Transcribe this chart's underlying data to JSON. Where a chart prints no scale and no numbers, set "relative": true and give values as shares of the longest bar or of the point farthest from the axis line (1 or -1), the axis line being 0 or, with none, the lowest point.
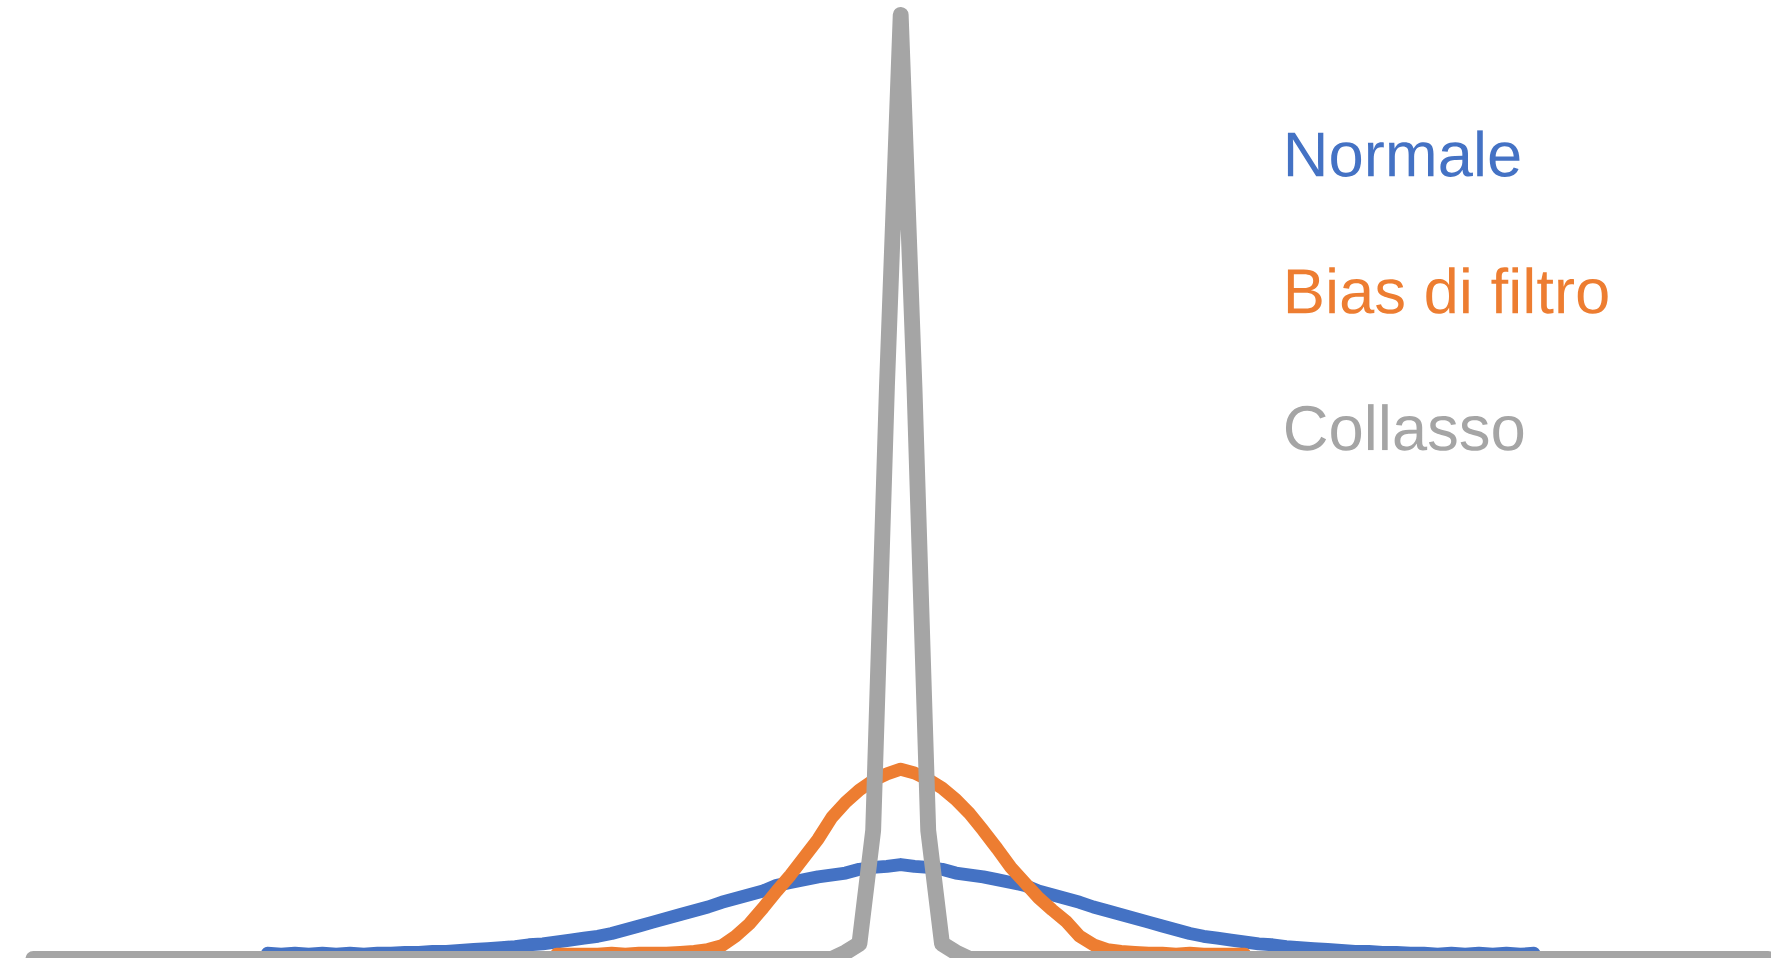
{
  "chart_data": {
    "type": "line",
    "relative": true,
    "categories": [
      null,
      null,
      null,
      null,
      null,
      null,
      null,
      null,
      null,
      null,
      null,
      null,
      null,
      null,
      null,
      null,
      null,
      null,
      null,
      null,
      null,
      null,
      null,
      null,
      null,
      null,
      null,
      null,
      null,
      null,
      null,
      null,
      null,
      null,
      null,
      null,
      null,
      null,
      null,
      null,
      null,
      null,
      null,
      null,
      null,
      null,
      null,
      null,
      null,
      null,
      null,
      null,
      null,
      null,
      null,
      null,
      null,
      null,
      null,
      null,
      null,
      null,
      null,
      null,
      null,
      null,
      null,
      null,
      null,
      null,
      null,
      null,
      null,
      null,
      null,
      null,
      null,
      null,
      null,
      null,
      null,
      null,
      null,
      null,
      null,
      null,
      null,
      null,
      null,
      null,
      null,
      null,
      null,
      null,
      null,
      null,
      null,
      null,
      null,
      null,
      null,
      null,
      null,
      null,
      null,
      null,
      null,
      null,
      null,
      null,
      null,
      null,
      null,
      null,
      null,
      null,
      null,
      null,
      null,
      null,
      null,
      null,
      null,
      null,
      null,
      null,
      null
    ],
    "series": [
      {
        "name": "Normale",
        "color": "#4472c4",
        "values": [
          null,
          null,
          null,
          null,
          null,
          null,
          null,
          null,
          null,
          null,
          null,
          null,
          null,
          null,
          null,
          null,
          null,
          0.006,
          0.005,
          0.006,
          0.005,
          0.006,
          0.005,
          0.006,
          0.005,
          0.006,
          0.006,
          0.007,
          0.007,
          0.008,
          0.008,
          0.009,
          0.01,
          0.011,
          0.012,
          0.013,
          0.015,
          0.016,
          0.018,
          0.02,
          0.022,
          0.024,
          0.027,
          0.031,
          0.035,
          0.039,
          0.043,
          0.047,
          0.051,
          0.055,
          0.06,
          0.064,
          0.068,
          0.072,
          0.078,
          0.081,
          0.084,
          0.087,
          0.089,
          0.091,
          0.095,
          0.097,
          0.098,
          0.1,
          0.098,
          0.097,
          0.095,
          0.091,
          0.089,
          0.087,
          0.084,
          0.081,
          0.078,
          0.072,
          0.068,
          0.064,
          0.06,
          0.055,
          0.051,
          0.047,
          0.043,
          0.039,
          0.035,
          0.031,
          0.027,
          0.024,
          0.022,
          0.02,
          0.018,
          0.016,
          0.015,
          0.013,
          0.012,
          0.011,
          0.01,
          0.009,
          0.008,
          0.008,
          0.007,
          0.007,
          0.006,
          0.006,
          0.005,
          0.006,
          0.005,
          0.006,
          0.005,
          0.006,
          0.005,
          0.006,
          null,
          null,
          null,
          null,
          null,
          null,
          null,
          null,
          null,
          null,
          null,
          null,
          null,
          null,
          null,
          null,
          null
        ]
      },
      {
        "name": "Bias di filtro",
        "color": "#ed7d31",
        "values": [
          null,
          null,
          null,
          null,
          null,
          null,
          null,
          null,
          null,
          null,
          null,
          null,
          null,
          null,
          null,
          null,
          null,
          null,
          null,
          null,
          null,
          null,
          null,
          null,
          null,
          null,
          null,
          null,
          null,
          null,
          null,
          null,
          null,
          null,
          null,
          null,
          null,
          null,
          0.005,
          0.005,
          0.005,
          0.005,
          0.006,
          0.005,
          0.006,
          0.006,
          0.006,
          0.007,
          0.008,
          0.01,
          0.014,
          0.024,
          0.037,
          0.054,
          0.072,
          0.089,
          0.108,
          0.127,
          0.15,
          0.166,
          0.179,
          0.189,
          0.196,
          0.201,
          0.197,
          0.19,
          0.181,
          0.169,
          0.154,
          0.136,
          0.117,
          0.097,
          0.081,
          0.065,
          0.052,
          0.04,
          0.024,
          0.015,
          0.01,
          0.008,
          0.007,
          0.006,
          0.006,
          0.005,
          0.006,
          0.005,
          0.005,
          0.005,
          0.005,
          null,
          null,
          null,
          null,
          null,
          null,
          null,
          null,
          null,
          null,
          null,
          null,
          null,
          null,
          null,
          null,
          null,
          null,
          null,
          null,
          null,
          null,
          null,
          null,
          null,
          null,
          null,
          null,
          null,
          null,
          null,
          null,
          null,
          null,
          null,
          null,
          null,
          null
        ]
      },
      {
        "name": "Collasso",
        "color": "#a5a5a5",
        "values": [
          0,
          0,
          0,
          0,
          0,
          0,
          0,
          0,
          0,
          0,
          0,
          0,
          0,
          0,
          0,
          0,
          0,
          0,
          0,
          0,
          0,
          0,
          0,
          0,
          0,
          0,
          0,
          0,
          0,
          0,
          0,
          0,
          0,
          0,
          0,
          0,
          0,
          0,
          0,
          0,
          0,
          0,
          0,
          0,
          0,
          0,
          0,
          0,
          0,
          0,
          0,
          0,
          0,
          0,
          0,
          0,
          0,
          0,
          0,
          0.007,
          0.016,
          0.136,
          0.606,
          1,
          0.606,
          0.136,
          0.016,
          0.007,
          0,
          0,
          0,
          0,
          0,
          0,
          0,
          0,
          0,
          0,
          0,
          0,
          0,
          0,
          0,
          0,
          0,
          0,
          0,
          0,
          0,
          0,
          0,
          0,
          0,
          0,
          0,
          0,
          0,
          0,
          0,
          0,
          0,
          0,
          0,
          0,
          0,
          0,
          0,
          0,
          0,
          0,
          0,
          0,
          0,
          0,
          0,
          0,
          0,
          0,
          0,
          0,
          0,
          0,
          0,
          0,
          0,
          0,
          0
        ]
      }
    ]
  }
}
